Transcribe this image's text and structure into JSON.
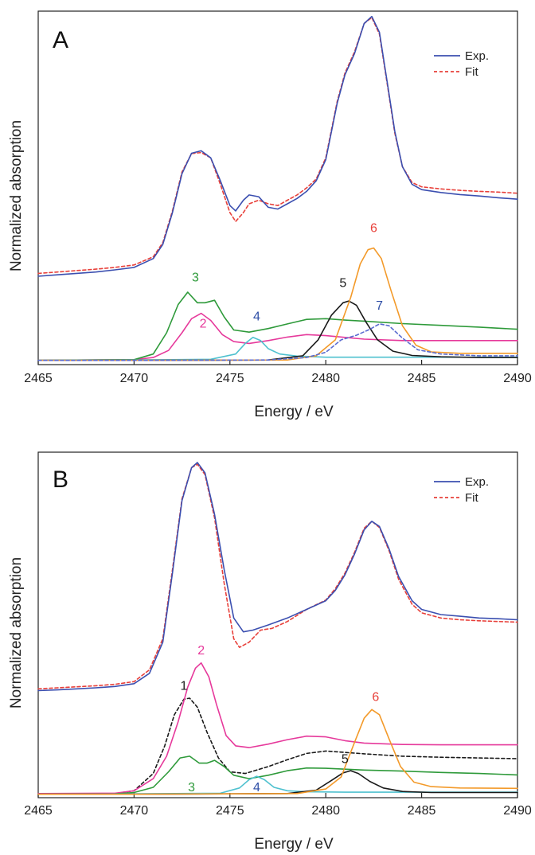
{
  "chart_data": [
    {
      "type": "line",
      "panel_label": "A",
      "xlabel": "Energy / eV",
      "ylabel": "Normalized absorption",
      "xlim": [
        2465,
        2490
      ],
      "ylim": [
        0,
        1
      ],
      "x_ticks": [
        2465,
        2470,
        2475,
        2480,
        2485,
        2490
      ],
      "y_ticks_shown": false,
      "grid": false,
      "legend_position": "top-right",
      "legend": [
        {
          "name": "Exp.",
          "color": "#3b4fb0",
          "style": "solid"
        },
        {
          "name": "Fit",
          "color": "#e8403a",
          "style": "dashed"
        }
      ],
      "series": [
        {
          "name": "Exp.",
          "color": "#3b4fb0",
          "style": "solid",
          "x": [
            2465,
            2466,
            2467,
            2468,
            2469,
            2470,
            2471,
            2471.5,
            2472,
            2472.5,
            2473,
            2473.5,
            2474,
            2474.5,
            2475,
            2475.3,
            2475.7,
            2476,
            2476.5,
            2477,
            2477.5,
            2478,
            2478.5,
            2479,
            2479.5,
            2480,
            2480.3,
            2480.6,
            2481,
            2481.5,
            2482,
            2482.4,
            2482.8,
            2483.2,
            2483.6,
            2484,
            2484.5,
            2485,
            2486,
            2487,
            2488,
            2489,
            2490
          ],
          "y": [
            0.25,
            0.254,
            0.258,
            0.262,
            0.268,
            0.275,
            0.3,
            0.34,
            0.43,
            0.54,
            0.598,
            0.605,
            0.585,
            0.52,
            0.45,
            0.435,
            0.465,
            0.48,
            0.475,
            0.445,
            0.44,
            0.455,
            0.47,
            0.49,
            0.52,
            0.58,
            0.66,
            0.74,
            0.82,
            0.88,
            0.965,
            0.985,
            0.94,
            0.8,
            0.66,
            0.56,
            0.51,
            0.495,
            0.487,
            0.481,
            0.477,
            0.472,
            0.468
          ]
        },
        {
          "name": "Fit",
          "color": "#e8403a",
          "style": "dashed",
          "x": [
            2465,
            2466,
            2467,
            2468,
            2469,
            2470,
            2471,
            2471.5,
            2472,
            2472.5,
            2473,
            2473.5,
            2474,
            2474.5,
            2475,
            2475.3,
            2475.7,
            2476,
            2476.5,
            2477,
            2477.5,
            2478,
            2478.5,
            2479,
            2479.5,
            2480,
            2480.3,
            2480.6,
            2481,
            2481.5,
            2482,
            2482.4,
            2482.8,
            2483.2,
            2483.6,
            2484,
            2484.5,
            2485,
            2486,
            2487,
            2488,
            2489,
            2490
          ],
          "y": [
            0.258,
            0.262,
            0.266,
            0.27,
            0.275,
            0.282,
            0.305,
            0.345,
            0.435,
            0.545,
            0.597,
            0.6,
            0.585,
            0.51,
            0.43,
            0.405,
            0.43,
            0.455,
            0.465,
            0.455,
            0.45,
            0.465,
            0.48,
            0.5,
            0.525,
            0.585,
            0.665,
            0.745,
            0.825,
            0.885,
            0.965,
            0.982,
            0.935,
            0.795,
            0.655,
            0.56,
            0.515,
            0.503,
            0.497,
            0.493,
            0.49,
            0.488,
            0.485
          ]
        },
        {
          "name": "2",
          "color": "#e6399b",
          "style": "solid",
          "x": [
            2465,
            2470,
            2471,
            2471.8,
            2472.5,
            2473,
            2473.5,
            2474,
            2474.6,
            2475.2,
            2476,
            2477,
            2478,
            2479,
            2480,
            2481,
            2482,
            2484,
            2486,
            2488,
            2490
          ],
          "y": [
            0.012,
            0.014,
            0.02,
            0.04,
            0.09,
            0.13,
            0.145,
            0.125,
            0.085,
            0.065,
            0.06,
            0.068,
            0.078,
            0.085,
            0.082,
            0.077,
            0.072,
            0.068,
            0.068,
            0.068,
            0.068
          ]
        },
        {
          "name": "3",
          "color": "#2e9a3a",
          "style": "solid",
          "x": [
            2465,
            2470,
            2471,
            2471.7,
            2472.3,
            2472.8,
            2473.3,
            2473.7,
            2474.2,
            2474.7,
            2475.2,
            2476,
            2477,
            2478,
            2479,
            2480,
            2481,
            2482,
            2484,
            2486,
            2488,
            2490
          ],
          "y": [
            0.012,
            0.014,
            0.03,
            0.09,
            0.17,
            0.205,
            0.175,
            0.175,
            0.182,
            0.135,
            0.098,
            0.092,
            0.102,
            0.115,
            0.128,
            0.13,
            0.126,
            0.123,
            0.116,
            0.111,
            0.106,
            0.1
          ]
        },
        {
          "name": "4",
          "color": "#4fc1cf",
          "style": "solid",
          "x": [
            2465,
            2470,
            2474,
            2475.3,
            2475.8,
            2476.2,
            2476.6,
            2477,
            2477.6,
            2478.5,
            2480,
            2483,
            2486,
            2490
          ],
          "y": [
            0.012,
            0.013,
            0.015,
            0.03,
            0.06,
            0.077,
            0.068,
            0.045,
            0.03,
            0.024,
            0.021,
            0.021,
            0.021,
            0.021
          ]
        },
        {
          "name": "5",
          "color": "#1a1a1a",
          "style": "solid",
          "x": [
            2465,
            2470,
            2477,
            2478.8,
            2479.6,
            2480.3,
            2480.9,
            2481.2,
            2481.6,
            2482.1,
            2482.7,
            2483.5,
            2484.5,
            2486,
            2488,
            2490
          ],
          "y": [
            0.012,
            0.012,
            0.013,
            0.025,
            0.07,
            0.14,
            0.175,
            0.18,
            0.168,
            0.12,
            0.07,
            0.038,
            0.026,
            0.022,
            0.02,
            0.02
          ]
        },
        {
          "name": "6",
          "color": "#f39a2a",
          "style": "solid",
          "x": [
            2465,
            2470,
            2478,
            2479.5,
            2480.5,
            2481.3,
            2481.8,
            2482.2,
            2482.5,
            2482.9,
            2483.4,
            2484,
            2484.7,
            2485.5,
            2487,
            2490
          ],
          "y": [
            0.012,
            0.012,
            0.013,
            0.025,
            0.07,
            0.19,
            0.285,
            0.325,
            0.33,
            0.3,
            0.21,
            0.11,
            0.055,
            0.036,
            0.032,
            0.032
          ]
        },
        {
          "name": "7",
          "color": "#5a6bd0",
          "style": "dashed",
          "x": [
            2465,
            2470,
            2477,
            2479,
            2480,
            2480.8,
            2481.6,
            2482.3,
            2482.8,
            2483.3,
            2484,
            2484.8,
            2486,
            2488,
            2490
          ],
          "y": [
            0.012,
            0.012,
            0.013,
            0.02,
            0.035,
            0.07,
            0.083,
            0.1,
            0.115,
            0.11,
            0.075,
            0.042,
            0.03,
            0.025,
            0.025
          ]
        }
      ],
      "annotations": [
        {
          "text": "3",
          "x": 2473.2,
          "y": 0.235,
          "color": "#2e9a3a"
        },
        {
          "text": "2",
          "x": 2473.6,
          "y": 0.105,
          "color": "#e6399b"
        },
        {
          "text": "4",
          "x": 2476.4,
          "y": 0.125,
          "color": "#2e4ea6"
        },
        {
          "text": "5",
          "x": 2480.9,
          "y": 0.22,
          "color": "#1a1a1a"
        },
        {
          "text": "6",
          "x": 2482.5,
          "y": 0.375,
          "color": "#e8403a"
        },
        {
          "text": "7",
          "x": 2482.8,
          "y": 0.155,
          "color": "#2e4ea6"
        }
      ]
    },
    {
      "type": "line",
      "panel_label": "B",
      "xlabel": "Energy / eV",
      "ylabel": "Normalized absorption",
      "xlim": [
        2465,
        2490
      ],
      "ylim": [
        0,
        1
      ],
      "x_ticks": [
        2465,
        2470,
        2475,
        2480,
        2485,
        2490
      ],
      "y_ticks_shown": false,
      "grid": false,
      "legend_position": "top-right",
      "legend": [
        {
          "name": "Exp.",
          "color": "#3b4fb0",
          "style": "solid"
        },
        {
          "name": "Fit",
          "color": "#e8403a",
          "style": "dashed"
        }
      ],
      "series": [
        {
          "name": "Exp.",
          "color": "#3b4fb0",
          "style": "solid",
          "x": [
            2465,
            2466,
            2467,
            2468,
            2469,
            2470,
            2470.8,
            2471.5,
            2472,
            2472.5,
            2473,
            2473.3,
            2473.7,
            2474.2,
            2474.7,
            2475.2,
            2475.7,
            2476.2,
            2477,
            2478,
            2479,
            2480,
            2480.5,
            2481,
            2481.5,
            2482,
            2482.4,
            2482.8,
            2483.3,
            2483.8,
            2484.5,
            2485,
            2486,
            2487,
            2488,
            2489,
            2490
          ],
          "y": [
            0.31,
            0.312,
            0.315,
            0.318,
            0.322,
            0.33,
            0.36,
            0.45,
            0.65,
            0.86,
            0.955,
            0.97,
            0.94,
            0.82,
            0.66,
            0.52,
            0.48,
            0.485,
            0.5,
            0.52,
            0.545,
            0.57,
            0.6,
            0.645,
            0.705,
            0.775,
            0.8,
            0.785,
            0.72,
            0.64,
            0.57,
            0.545,
            0.53,
            0.525,
            0.52,
            0.518,
            0.515
          ]
        },
        {
          "name": "Fit",
          "color": "#e8403a",
          "style": "dashed",
          "x": [
            2465,
            2466,
            2467,
            2468,
            2469,
            2470,
            2470.8,
            2471.5,
            2472,
            2472.5,
            2473,
            2473.3,
            2473.7,
            2474.2,
            2474.7,
            2475.2,
            2475.5,
            2476,
            2476.6,
            2477.2,
            2478,
            2479,
            2480,
            2480.5,
            2481,
            2481.5,
            2482,
            2482.4,
            2482.8,
            2483.3,
            2483.8,
            2484.5,
            2485,
            2486,
            2487,
            2488,
            2489,
            2490
          ],
          "y": [
            0.315,
            0.318,
            0.321,
            0.324,
            0.328,
            0.336,
            0.37,
            0.46,
            0.66,
            0.865,
            0.955,
            0.965,
            0.935,
            0.81,
            0.62,
            0.46,
            0.435,
            0.45,
            0.485,
            0.49,
            0.51,
            0.545,
            0.572,
            0.605,
            0.65,
            0.71,
            0.78,
            0.8,
            0.782,
            0.715,
            0.632,
            0.56,
            0.535,
            0.52,
            0.515,
            0.512,
            0.51,
            0.508
          ]
        },
        {
          "name": "1",
          "color": "#1a1a1a",
          "style": "dashed",
          "x": [
            2465,
            2469,
            2470,
            2471,
            2471.6,
            2472.1,
            2472.6,
            2472.9,
            2473.3,
            2473.8,
            2474.4,
            2475,
            2475.8,
            2477,
            2478,
            2479,
            2480,
            2482,
            2484,
            2486,
            2488,
            2490
          ],
          "y": [
            0.01,
            0.012,
            0.02,
            0.07,
            0.15,
            0.24,
            0.285,
            0.288,
            0.262,
            0.19,
            0.115,
            0.075,
            0.07,
            0.09,
            0.11,
            0.128,
            0.135,
            0.127,
            0.12,
            0.117,
            0.115,
            0.113
          ]
        },
        {
          "name": "2",
          "color": "#e6399b",
          "style": "solid",
          "x": [
            2465,
            2469,
            2470,
            2471,
            2471.7,
            2472.3,
            2472.8,
            2473.2,
            2473.5,
            2473.9,
            2474.3,
            2474.8,
            2475.3,
            2476,
            2477,
            2478,
            2479,
            2480,
            2481,
            2482,
            2484,
            2486,
            2488,
            2490
          ],
          "y": [
            0.012,
            0.013,
            0.02,
            0.055,
            0.12,
            0.22,
            0.32,
            0.375,
            0.39,
            0.35,
            0.27,
            0.18,
            0.15,
            0.145,
            0.155,
            0.168,
            0.178,
            0.176,
            0.165,
            0.158,
            0.154,
            0.153,
            0.153,
            0.153
          ]
        },
        {
          "name": "3",
          "color": "#2e9a3a",
          "style": "solid",
          "x": [
            2465,
            2469,
            2470,
            2471,
            2471.8,
            2472.4,
            2472.9,
            2473.4,
            2473.8,
            2474.2,
            2474.7,
            2475.2,
            2476,
            2477,
            2478,
            2479,
            2480,
            2482,
            2484,
            2486,
            2488,
            2490
          ],
          "y": [
            0.01,
            0.011,
            0.015,
            0.03,
            0.075,
            0.115,
            0.12,
            0.1,
            0.1,
            0.108,
            0.09,
            0.065,
            0.055,
            0.065,
            0.078,
            0.086,
            0.085,
            0.08,
            0.077,
            0.073,
            0.07,
            0.066
          ]
        },
        {
          "name": "4",
          "color": "#4fc1cf",
          "style": "solid",
          "x": [
            2465,
            2470,
            2474.5,
            2475.5,
            2476,
            2476.4,
            2476.8,
            2477.3,
            2478,
            2479,
            2481,
            2484,
            2487,
            2490
          ],
          "y": [
            0.01,
            0.011,
            0.013,
            0.028,
            0.052,
            0.062,
            0.052,
            0.03,
            0.02,
            0.017,
            0.016,
            0.016,
            0.016,
            0.016
          ]
        },
        {
          "name": "5",
          "color": "#1a1a1a",
          "style": "solid",
          "x": [
            2465,
            2470,
            2478,
            2479.5,
            2480.3,
            2480.9,
            2481.3,
            2481.7,
            2482.3,
            2483,
            2484,
            2485.5,
            2487,
            2490
          ],
          "y": [
            0.01,
            0.01,
            0.012,
            0.022,
            0.05,
            0.072,
            0.078,
            0.07,
            0.047,
            0.028,
            0.018,
            0.015,
            0.015,
            0.015
          ]
        },
        {
          "name": "6",
          "color": "#f39a2a",
          "style": "solid",
          "x": [
            2465,
            2470,
            2478.5,
            2480,
            2480.8,
            2481.5,
            2482,
            2482.4,
            2482.8,
            2483.3,
            2483.9,
            2484.6,
            2485.5,
            2487,
            2490
          ],
          "y": [
            0.01,
            0.01,
            0.012,
            0.025,
            0.06,
            0.16,
            0.23,
            0.255,
            0.24,
            0.17,
            0.09,
            0.045,
            0.032,
            0.028,
            0.027
          ]
        }
      ],
      "annotations": [
        {
          "text": "1",
          "x": 2472.6,
          "y": 0.312,
          "color": "#1a1a1a"
        },
        {
          "text": "2",
          "x": 2473.5,
          "y": 0.415,
          "color": "#e6399b"
        },
        {
          "text": "3",
          "x": 2473.0,
          "y": 0.018,
          "color": "#2e9a3a"
        },
        {
          "text": "4",
          "x": 2476.4,
          "y": 0.018,
          "color": "#2e4ea6"
        },
        {
          "text": "5",
          "x": 2481.0,
          "y": 0.1,
          "color": "#1a1a1a"
        },
        {
          "text": "6",
          "x": 2482.6,
          "y": 0.28,
          "color": "#e8403a"
        }
      ]
    }
  ]
}
